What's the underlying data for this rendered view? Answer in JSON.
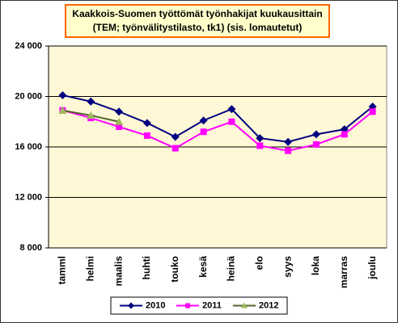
{
  "chart_data": {
    "type": "line",
    "title": [
      "Kaakkois-Suomen työttömät työnhakijat kuukausittain",
      "(TEM; työnvälitystilasto,  tk1) (sis. lomautetut)"
    ],
    "categories": [
      "tamml",
      "helmi",
      "maalis",
      "huhti",
      "touko",
      "kesä",
      "heinä",
      "elo",
      "syys",
      "loka",
      "marras",
      "joulu"
    ],
    "series": [
      {
        "name": "2010",
        "color": "#000080",
        "marker": "diamond",
        "values": [
          20100,
          19600,
          18800,
          17900,
          16800,
          18100,
          19000,
          16700,
          16400,
          17000,
          17400,
          19200
        ]
      },
      {
        "name": "2011",
        "color": "#ff00ff",
        "marker": "square",
        "values": [
          18900,
          18300,
          17600,
          16900,
          15900,
          17200,
          18000,
          16100,
          15700,
          16200,
          17000,
          18800
        ]
      },
      {
        "name": "2012",
        "color": "#7f8f3f",
        "marker": "triangle",
        "values": [
          18900,
          18500,
          18000,
          null,
          null,
          null,
          null,
          null,
          null,
          null,
          null,
          null
        ]
      }
    ],
    "ylim": [
      8000,
      24000
    ],
    "yticks": [
      {
        "value": 8000,
        "label": "8 000"
      },
      {
        "value": 12000,
        "label": "12 000"
      },
      {
        "value": 16000,
        "label": "16 000"
      },
      {
        "value": 20000,
        "label": "20 000"
      },
      {
        "value": 24000,
        "label": "24 000"
      }
    ],
    "grid": true,
    "legend": "bottom"
  }
}
